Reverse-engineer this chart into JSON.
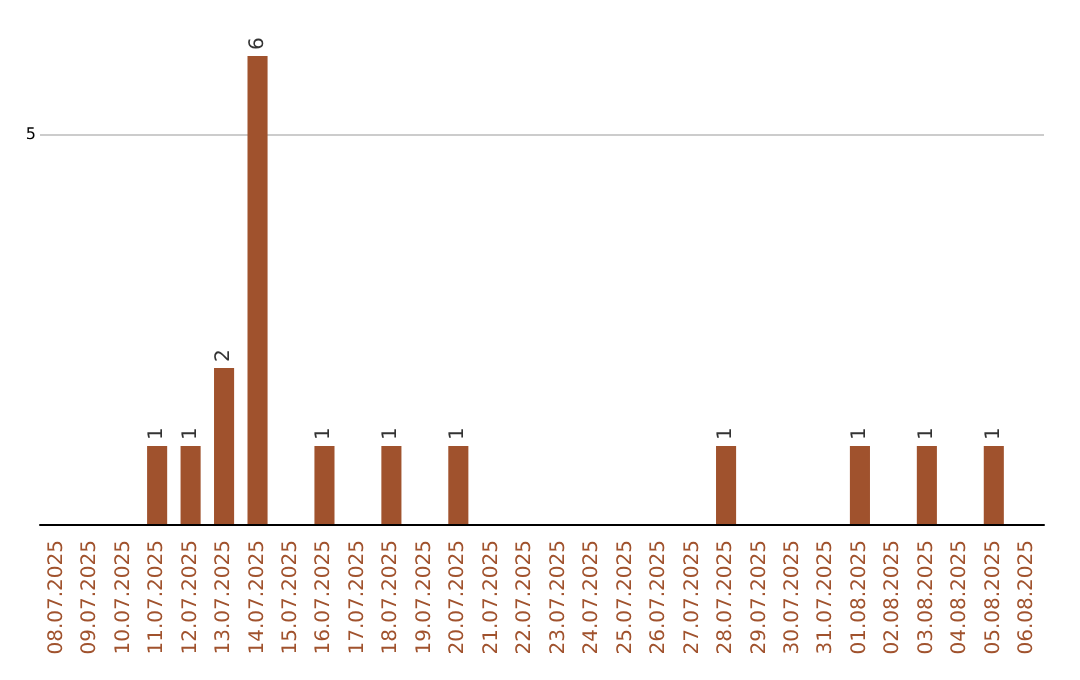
{
  "chart_data": {
    "type": "bar",
    "categories": [
      "08.07.2025",
      "09.07.2025",
      "10.07.2025",
      "11.07.2025",
      "12.07.2025",
      "13.07.2025",
      "14.07.2025",
      "15.07.2025",
      "16.07.2025",
      "17.07.2025",
      "18.07.2025",
      "19.07.2025",
      "20.07.2025",
      "21.07.2025",
      "22.07.2025",
      "23.07.2025",
      "24.07.2025",
      "25.07.2025",
      "26.07.2025",
      "27.07.2025",
      "28.07.2025",
      "29.07.2025",
      "30.07.2025",
      "31.07.2025",
      "01.08.2025",
      "02.08.2025",
      "03.08.2025",
      "04.08.2025",
      "05.08.2025",
      "06.08.2025"
    ],
    "values": [
      0,
      0,
      0,
      1,
      1,
      2,
      6,
      0,
      1,
      0,
      1,
      0,
      1,
      0,
      0,
      0,
      0,
      0,
      0,
      0,
      1,
      0,
      0,
      0,
      1,
      0,
      1,
      0,
      1,
      0
    ],
    "value_labels": [
      null,
      null,
      null,
      "1",
      "1",
      "2",
      "6",
      null,
      "1",
      null,
      "1",
      null,
      "1",
      null,
      null,
      null,
      null,
      null,
      null,
      null,
      "1",
      null,
      null,
      null,
      "1",
      null,
      "1",
      null,
      "1",
      null
    ],
    "color": "#a0522d",
    "ylim": [
      0,
      6
    ],
    "yticks": [
      5
    ],
    "grid": "y"
  }
}
